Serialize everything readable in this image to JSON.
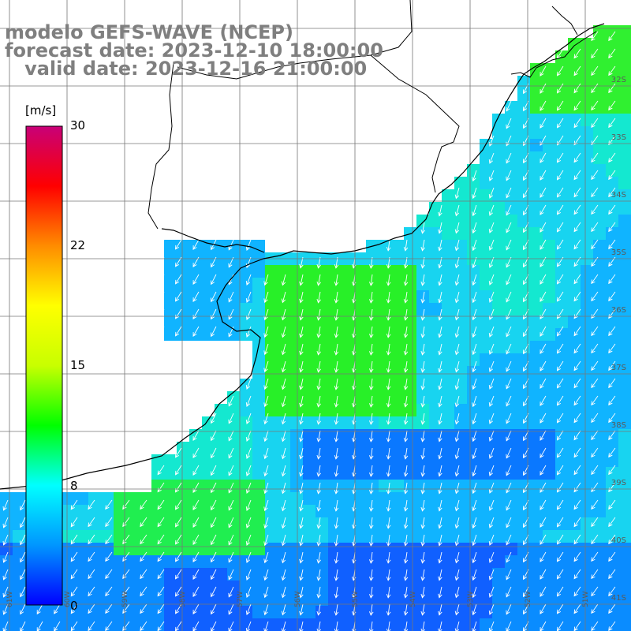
{
  "header": {
    "model": "modelo GEFS-WAVE (NCEP)",
    "forecast": "forecast date: 2023-12-10 18:00:00",
    "valid": "   valid date: 2023-12-16 21:00:00"
  },
  "colorbar": {
    "unit": "[m/s]",
    "ticks": [
      "30",
      "22",
      "15",
      "8",
      "0"
    ],
    "stops": [
      "#0000ff",
      "#0096ff",
      "#00ffff",
      "#00ff00",
      "#c8ff00",
      "#ffff00",
      "#ff8c00",
      "#ff0000",
      "#c80078"
    ]
  },
  "grid": {
    "lat_labels": [
      "32S",
      "33S",
      "34S",
      "35S",
      "36S",
      "37S",
      "38S",
      "39S",
      "40S",
      "41S"
    ],
    "lon_labels": [
      "61W",
      "60W",
      "59W",
      "58W",
      "57W",
      "56W",
      "55W",
      "54W",
      "53W",
      "52W",
      "51W"
    ]
  },
  "colors": {
    "land": "#ffffff",
    "grid": "#777777",
    "coast": "#000000",
    "arrows": "#ffffff"
  }
}
